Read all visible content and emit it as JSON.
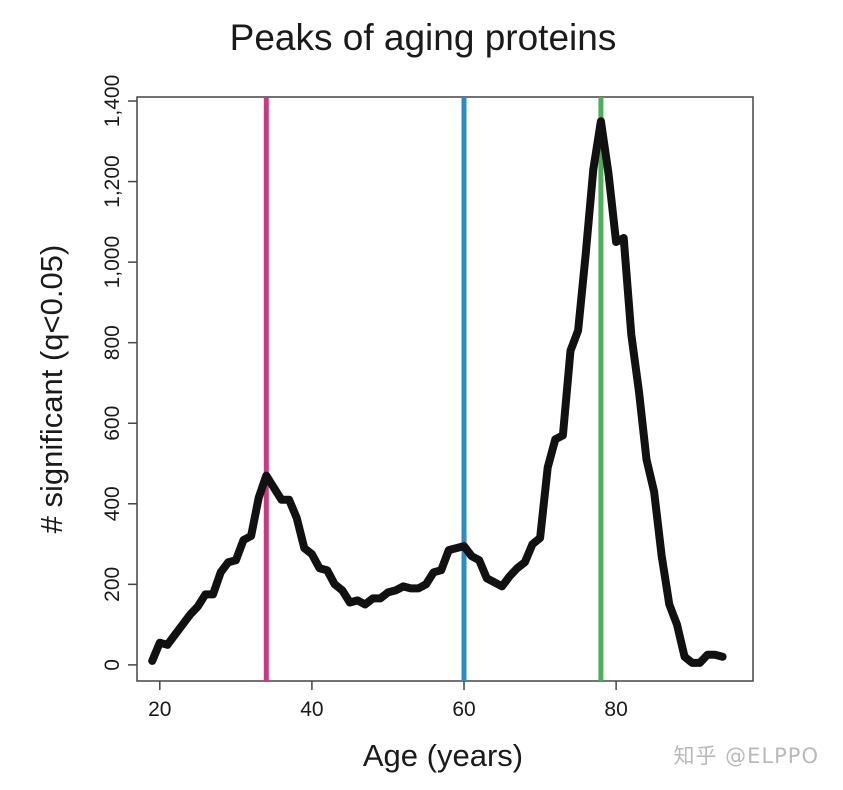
{
  "chart_data": {
    "type": "line",
    "title": "Peaks of aging proteins",
    "xlabel": "Age (years)",
    "ylabel": "# significant (q<0.05)",
    "xlim": [
      17,
      98
    ],
    "ylim": [
      -40,
      1410
    ],
    "x_ticks": [
      20,
      40,
      60,
      80
    ],
    "x_tick_labels": [
      "20",
      "40",
      "60",
      "80"
    ],
    "y_ticks": [
      0,
      200,
      400,
      600,
      800,
      1000,
      1200,
      1400
    ],
    "y_tick_labels": [
      "0",
      "200",
      "400",
      "600",
      "800",
      "1,000",
      "1,200",
      "1,400"
    ],
    "grid": false,
    "series": [
      {
        "color": "#111111",
        "x": [
          19,
          20,
          21,
          22,
          23,
          24,
          25,
          26,
          27,
          28,
          29,
          30,
          31,
          32,
          33,
          34,
          35,
          36,
          37,
          38,
          39,
          40,
          41,
          42,
          43,
          44,
          45,
          46,
          47,
          48,
          49,
          50,
          51,
          52,
          53,
          54,
          55,
          56,
          57,
          58,
          59,
          60,
          61,
          62,
          63,
          64,
          65,
          66,
          67,
          68,
          69,
          70,
          71,
          72,
          73,
          74,
          75,
          76,
          77,
          78,
          79,
          80,
          81,
          82,
          83,
          84,
          85,
          86,
          87,
          88,
          89,
          90,
          91,
          92,
          93,
          94
        ],
        "y": [
          10,
          55,
          50,
          75,
          100,
          125,
          145,
          175,
          175,
          230,
          255,
          260,
          310,
          320,
          415,
          470,
          440,
          410,
          410,
          365,
          290,
          275,
          240,
          235,
          200,
          185,
          155,
          160,
          150,
          165,
          165,
          180,
          185,
          195,
          190,
          190,
          200,
          230,
          235,
          285,
          290,
          295,
          270,
          260,
          215,
          205,
          195,
          220,
          240,
          255,
          300,
          315,
          490,
          560,
          570,
          780,
          830,
          1020,
          1230,
          1350,
          1220,
          1050,
          1060,
          820,
          680,
          510,
          430,
          270,
          150,
          100,
          20,
          5,
          5,
          25,
          25,
          20
        ]
      }
    ],
    "vertical_lines": [
      {
        "x": 34,
        "color": "#c93a80"
      },
      {
        "x": 60,
        "color": "#2b8cc4"
      },
      {
        "x": 78,
        "color": "#4fae5a"
      }
    ]
  },
  "watermark": "知乎 @ELPPO"
}
